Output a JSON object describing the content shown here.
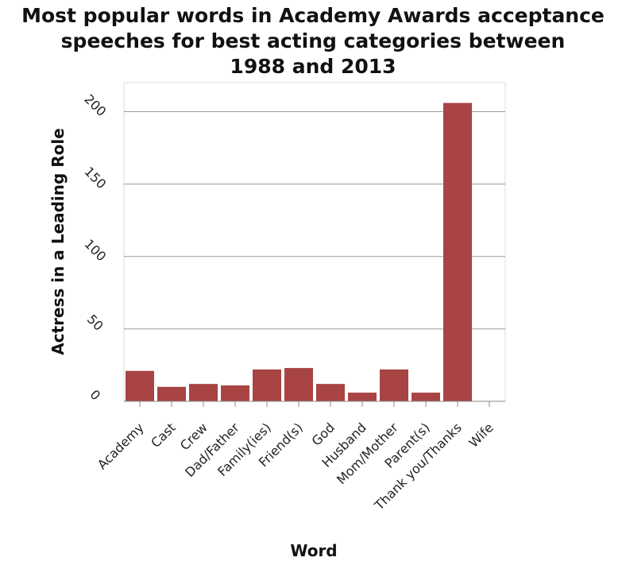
{
  "chart_data": {
    "type": "bar",
    "title_lines": [
      "Most popular words in Academy Awards acceptance",
      "speeches for best acting categories between",
      "1988 and 2013"
    ],
    "xlabel": "Word",
    "ylabel": "Actress in a Leading Role",
    "categories": [
      "Academy",
      "Cast",
      "Crew",
      "Dad/Father",
      "Family(ies)",
      "Friend(s)",
      "God",
      "Husband",
      "Mom/Mother",
      "Parent(s)",
      "Thank you/Thanks",
      "Wife"
    ],
    "values": [
      21,
      10,
      12,
      11,
      22,
      23,
      12,
      6,
      22,
      6,
      206,
      0
    ],
    "ylim": [
      0,
      220
    ],
    "yticks": [
      0,
      50,
      100,
      150,
      200
    ],
    "grid": true,
    "bar_color": "#a84444"
  }
}
